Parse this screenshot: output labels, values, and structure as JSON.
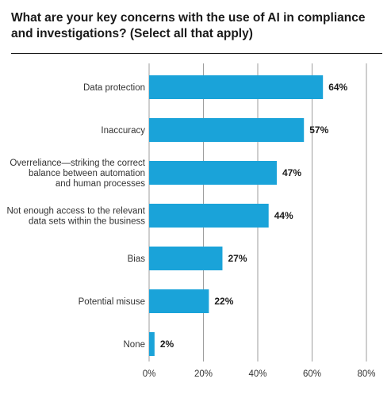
{
  "chart_data": {
    "type": "bar",
    "orientation": "horizontal",
    "title": "What are your key concerns with the use of AI in compliance and investigations? (Select all that apply)",
    "categories": [
      [
        "Data protection"
      ],
      [
        "Inaccuracy"
      ],
      [
        "Overreliance—striking the correct",
        "balance between automation",
        "and human processes"
      ],
      [
        "Not enough access to the relevant",
        "data sets within the business"
      ],
      [
        "Bias"
      ],
      [
        "Potential misuse"
      ],
      [
        "None"
      ]
    ],
    "values": [
      64,
      57,
      47,
      44,
      27,
      22,
      2
    ],
    "value_labels": [
      "64%",
      "57%",
      "47%",
      "44%",
      "27%",
      "22%",
      "2%"
    ],
    "xlim": [
      0,
      80
    ],
    "ticks": [
      0,
      20,
      40,
      60,
      80
    ],
    "tick_labels": [
      "0%",
      "20%",
      "40%",
      "60%",
      "80%"
    ],
    "grid": true,
    "bar_color": "#1aa3d9",
    "grid_color": "#9e9e9e"
  }
}
